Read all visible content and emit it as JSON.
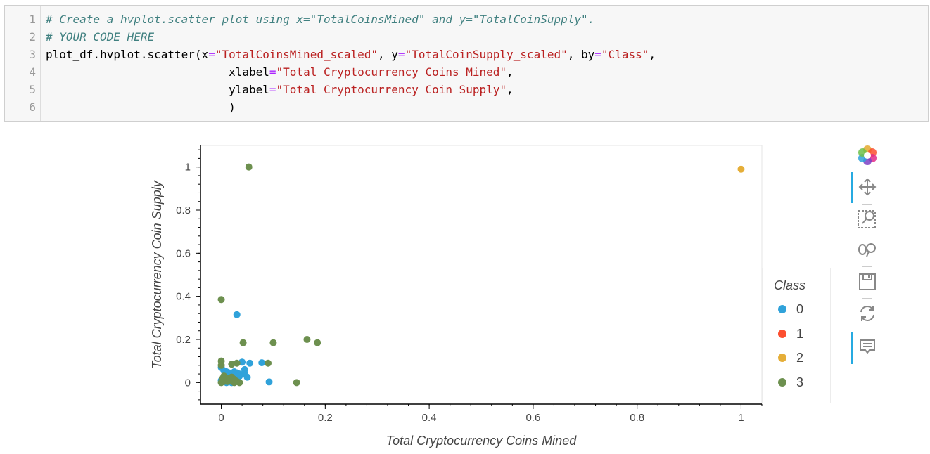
{
  "code_cell": {
    "line_numbers": [
      "1",
      "2",
      "3",
      "4",
      "5",
      "6"
    ],
    "lines": [
      [
        {
          "t": "comment",
          "v": "# Create a hvplot.scatter plot using x=\"TotalCoinsMined\" and y=\"TotalCoinSupply\"."
        }
      ],
      [
        {
          "t": "comment",
          "v": "# YOUR CODE HERE"
        }
      ],
      [
        {
          "t": "plain",
          "v": "plot_df.hvplot.scatter(x"
        },
        {
          "t": "op",
          "v": "="
        },
        {
          "t": "string",
          "v": "\"TotalCoinsMined_scaled\""
        },
        {
          "t": "plain",
          "v": ", y"
        },
        {
          "t": "op",
          "v": "="
        },
        {
          "t": "string",
          "v": "\"TotalCoinSupply_scaled\""
        },
        {
          "t": "plain",
          "v": ", by"
        },
        {
          "t": "op",
          "v": "="
        },
        {
          "t": "string",
          "v": "\"Class\""
        },
        {
          "t": "plain",
          "v": ","
        }
      ],
      [
        {
          "t": "plain",
          "v": "                           xlabel"
        },
        {
          "t": "op",
          "v": "="
        },
        {
          "t": "string",
          "v": "\"Total Cryptocurrency Coins Mined\""
        },
        {
          "t": "plain",
          "v": ","
        }
      ],
      [
        {
          "t": "plain",
          "v": "                           ylabel"
        },
        {
          "t": "op",
          "v": "="
        },
        {
          "t": "string",
          "v": "\"Total Cryptocurrency Coin Supply\""
        },
        {
          "t": "plain",
          "v": ","
        }
      ],
      [
        {
          "t": "plain",
          "v": "                           )"
        }
      ]
    ]
  },
  "chart_data": {
    "type": "scatter",
    "xlabel": "Total Cryptocurrency Coins Mined",
    "ylabel": "Total Cryptocurrency Coin Supply",
    "xlim": [
      -0.04,
      1.04
    ],
    "ylim": [
      -0.1,
      1.1
    ],
    "x_ticks": [
      0,
      0.2,
      0.4,
      0.6,
      0.8,
      1
    ],
    "x_tick_labels": [
      "0",
      "0.2",
      "0.4",
      "0.6",
      "0.8",
      "1"
    ],
    "y_ticks": [
      0,
      0.2,
      0.4,
      0.6,
      0.8,
      1
    ],
    "y_tick_labels": [
      "0",
      "0.2",
      "0.4",
      "0.6",
      "0.8",
      "1"
    ],
    "grid": false,
    "legend_title": "Class",
    "legend_position": "right",
    "series": [
      {
        "name": "0",
        "color": "#30a2da",
        "points": [
          [
            0.03,
            0.315
          ],
          [
            0.0,
            0.07
          ],
          [
            0.005,
            0.055
          ],
          [
            0.01,
            0.05
          ],
          [
            0.015,
            0.045
          ],
          [
            0.025,
            0.05
          ],
          [
            0.03,
            0.045
          ],
          [
            0.035,
            0.04
          ],
          [
            0.04,
            0.095
          ],
          [
            0.045,
            0.04
          ],
          [
            0.05,
            0.025
          ],
          [
            0.055,
            0.09
          ],
          [
            0.078,
            0.092
          ],
          [
            0.092,
            0.003
          ],
          [
            0.02,
            0.0
          ],
          [
            0.01,
            0.0
          ],
          [
            0.0,
            0.01
          ],
          [
            0.005,
            0.02
          ],
          [
            0.015,
            0.01
          ],
          [
            0.035,
            0.03
          ],
          [
            0.025,
            0.03
          ],
          [
            0.045,
            0.06
          ],
          [
            0.02,
            0.02
          ],
          [
            0.018,
            0.005
          ]
        ]
      },
      {
        "name": "1",
        "color": "#fc4f30",
        "points": []
      },
      {
        "name": "2",
        "color": "#e5ae38",
        "points": [
          [
            1.0,
            0.99
          ]
        ]
      },
      {
        "name": "3",
        "color": "#6d904f",
        "points": [
          [
            0.053,
            1.0
          ],
          [
            0.0,
            0.385
          ],
          [
            0.042,
            0.185
          ],
          [
            0.1,
            0.185
          ],
          [
            0.165,
            0.2
          ],
          [
            0.185,
            0.185
          ],
          [
            0.0,
            0.1
          ],
          [
            0.02,
            0.085
          ],
          [
            0.03,
            0.09
          ],
          [
            0.09,
            0.09
          ],
          [
            0.145,
            0.0
          ],
          [
            0.0,
            0.0
          ],
          [
            0.005,
            0.005
          ],
          [
            0.01,
            0.015
          ],
          [
            0.015,
            0.02
          ],
          [
            0.02,
            0.025
          ],
          [
            0.025,
            0.0
          ],
          [
            0.03,
            0.005
          ],
          [
            0.035,
            0.0
          ],
          [
            0.0,
            0.08
          ],
          [
            0.005,
            0.03
          ],
          [
            0.01,
            0.01
          ],
          [
            0.02,
            0.01
          ],
          [
            0.025,
            0.015
          ],
          [
            0.012,
            0.005
          ],
          [
            0.003,
            0.02
          ]
        ]
      }
    ]
  },
  "toolbar": {
    "tools": [
      {
        "name": "bokeh-logo-icon",
        "label": "Bokeh"
      },
      {
        "name": "pan-icon",
        "label": "Pan",
        "active": true
      },
      {
        "name": "box-zoom-icon",
        "label": "Box Zoom"
      },
      {
        "name": "wheel-zoom-icon",
        "label": "Wheel Zoom"
      },
      {
        "name": "save-icon",
        "label": "Save"
      },
      {
        "name": "reset-icon",
        "label": "Reset"
      },
      {
        "name": "hover-icon",
        "label": "Hover",
        "active": true
      }
    ]
  }
}
